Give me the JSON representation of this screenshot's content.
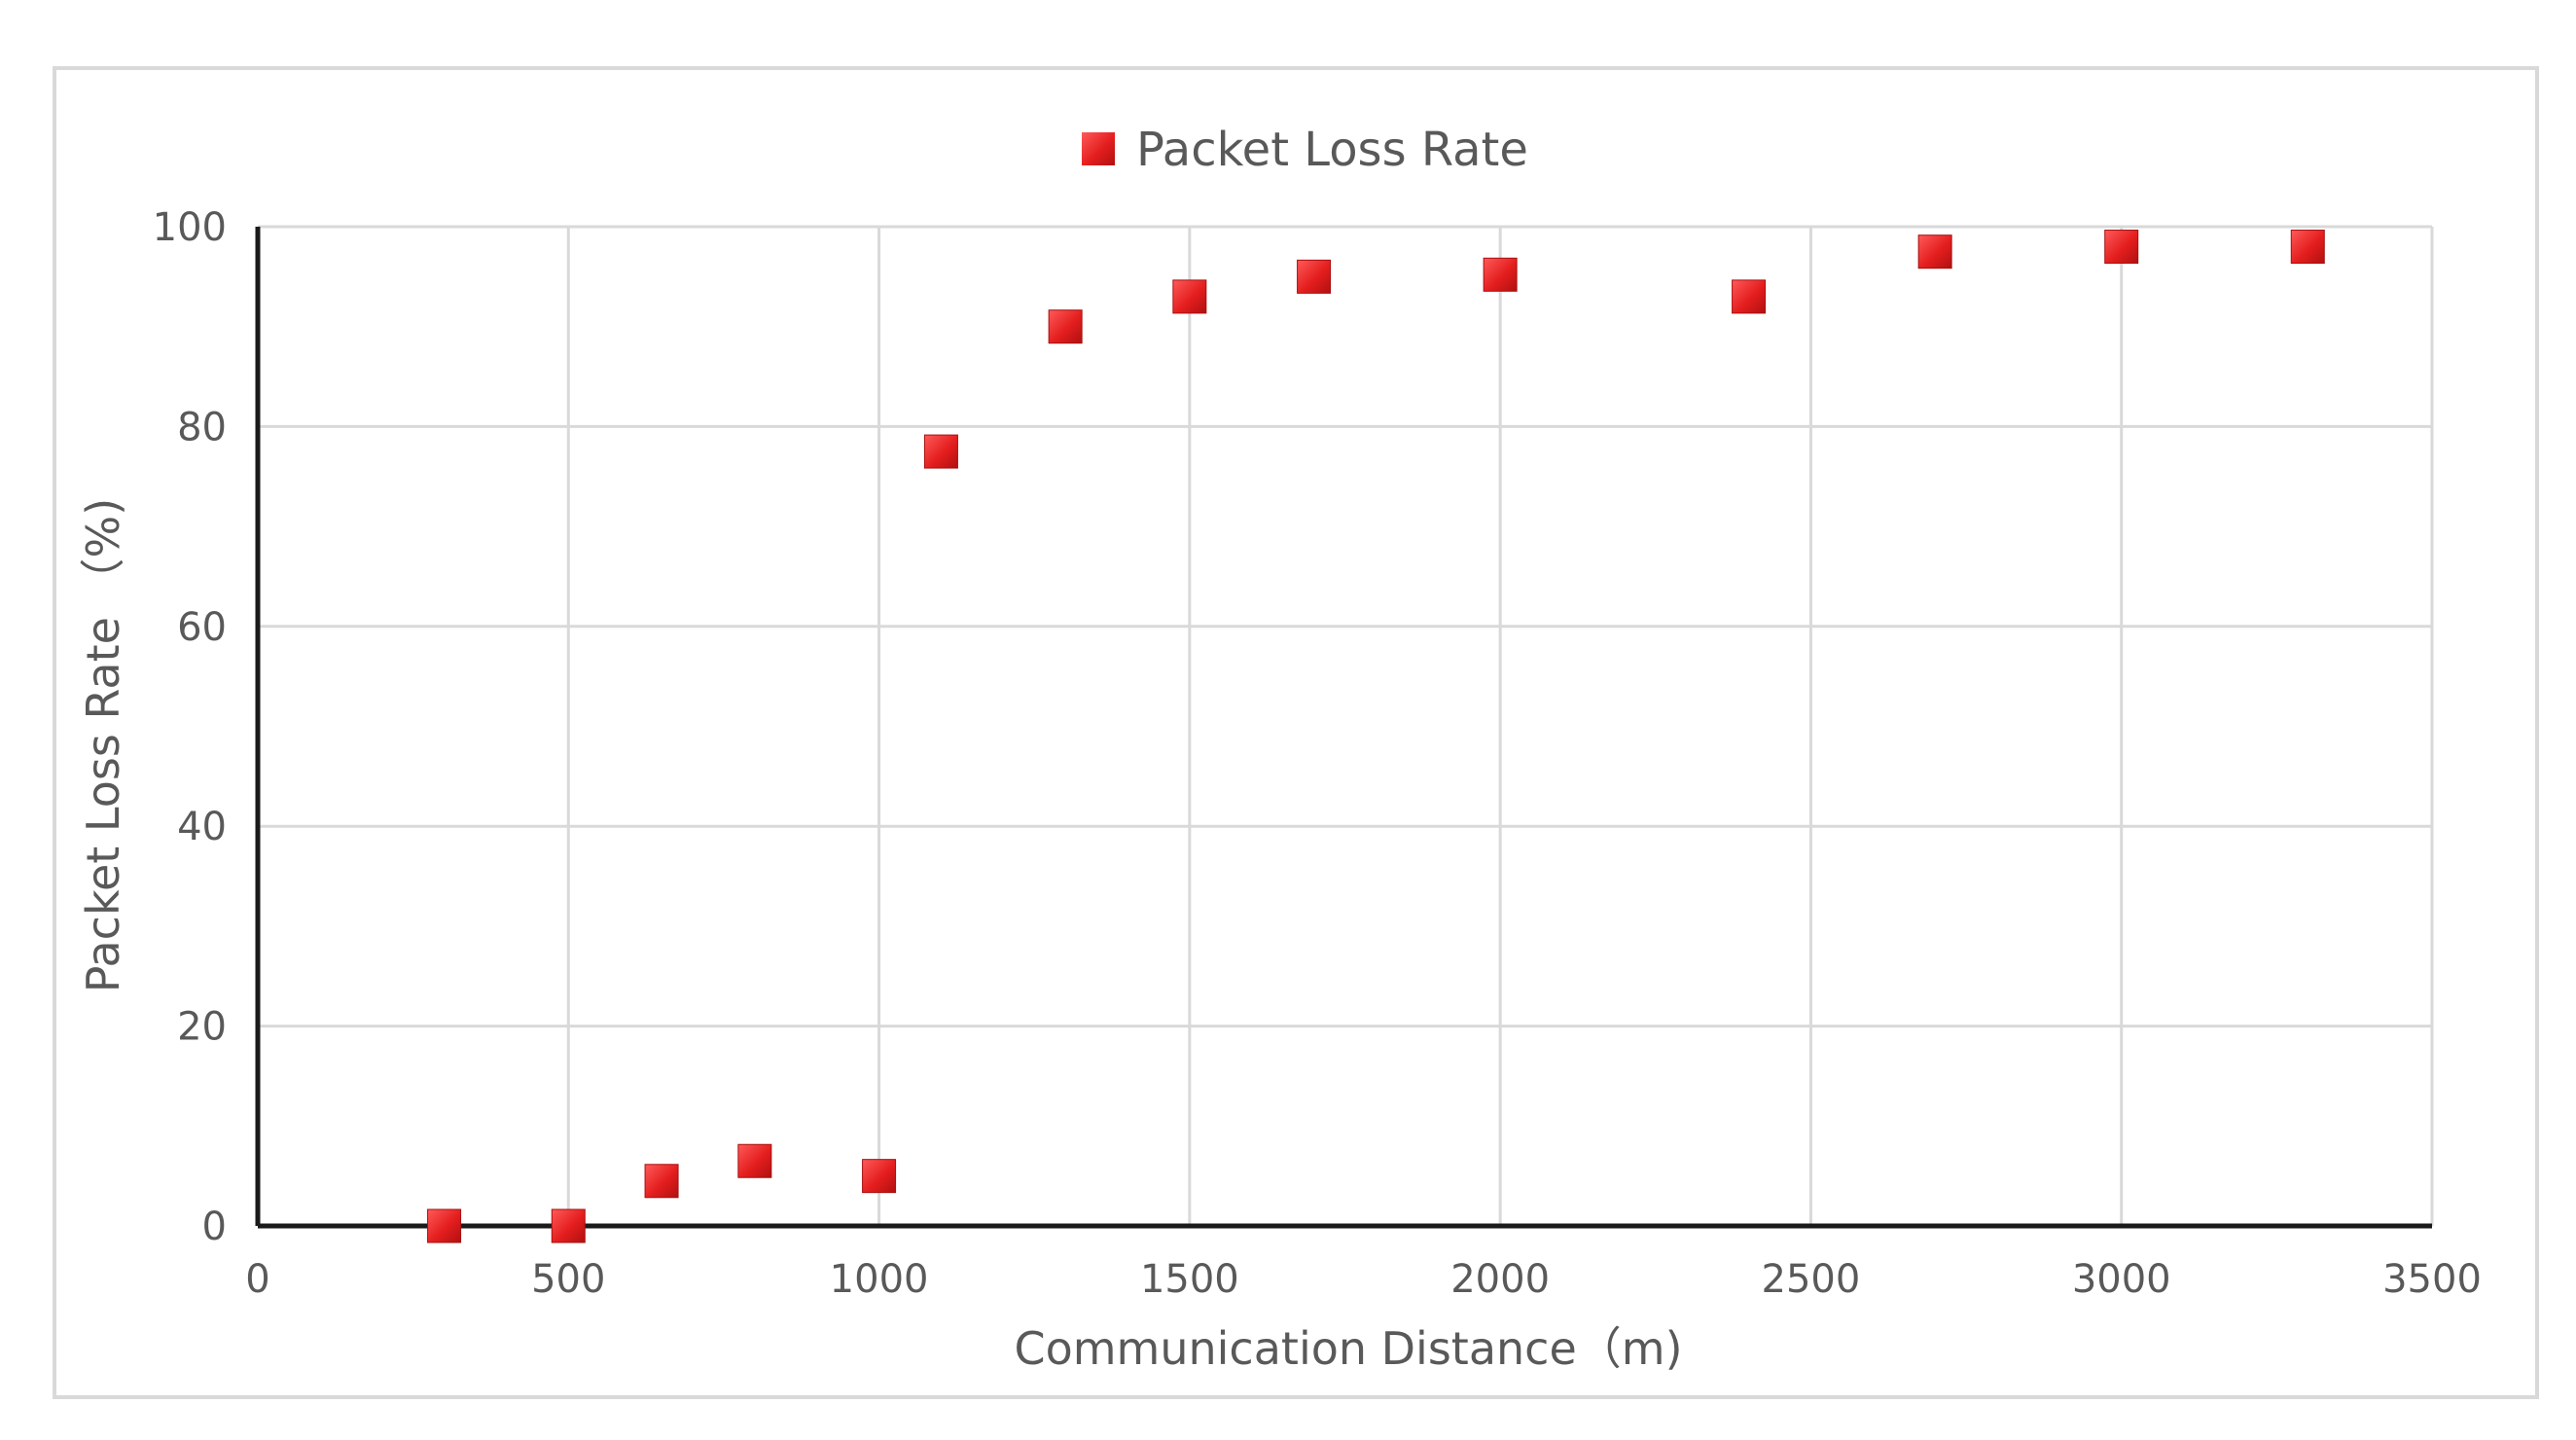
{
  "chart_data": {
    "type": "scatter",
    "xlabel": "Communication Distance（m)",
    "ylabel": "Packet Loss Rate （%)",
    "xlim": [
      0,
      3500
    ],
    "ylim": [
      0,
      100
    ],
    "x_ticks": [
      0,
      500,
      1000,
      1500,
      2000,
      2500,
      3000,
      3500
    ],
    "y_ticks": [
      0,
      20,
      40,
      60,
      80,
      100
    ],
    "grid": true,
    "legend_position": "top-center",
    "series": [
      {
        "name": "Packet Loss Rate",
        "color": "#e02020",
        "marker": "square",
        "points": [
          {
            "x": 300,
            "y": 0
          },
          {
            "x": 500,
            "y": 0
          },
          {
            "x": 650,
            "y": 4.5
          },
          {
            "x": 800,
            "y": 6.5
          },
          {
            "x": 1000,
            "y": 5
          },
          {
            "x": 1100,
            "y": 77.5
          },
          {
            "x": 1300,
            "y": 90
          },
          {
            "x": 1500,
            "y": 93
          },
          {
            "x": 1700,
            "y": 95
          },
          {
            "x": 2000,
            "y": 95.2
          },
          {
            "x": 2400,
            "y": 93
          },
          {
            "x": 2700,
            "y": 97.5
          },
          {
            "x": 3000,
            "y": 98
          },
          {
            "x": 3300,
            "y": 98
          }
        ]
      }
    ]
  }
}
